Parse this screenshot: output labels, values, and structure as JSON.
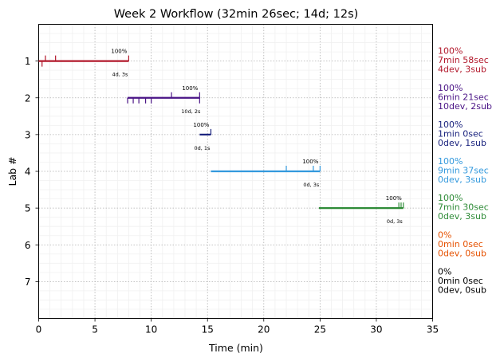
{
  "chart_data": {
    "type": "line",
    "title": "Week 2 Workflow (32min 26sec; 14d; 12s)",
    "xlabel": "Time (min)",
    "ylabel": "Lab #",
    "xlim": [
      0,
      35
    ],
    "ylim": [
      8,
      0
    ],
    "xticks": [
      "0",
      "5",
      "10",
      "15",
      "20",
      "25",
      "30",
      "35"
    ],
    "yticks": [
      "1",
      "2",
      "3",
      "4",
      "5",
      "6",
      "7"
    ],
    "grid": true,
    "series": [
      {
        "lab": 1,
        "color": "#b2182b",
        "start": 0.0,
        "end": 8.0,
        "dev_ticks": [
          0.3
        ],
        "sub_ticks": [
          0.6,
          1.5,
          8.0
        ],
        "pct": "100%",
        "counts": "4d, 3s",
        "side": [
          "100%",
          "7min 58sec",
          "4dev, 3sub"
        ]
      },
      {
        "lab": 2,
        "color": "#4a1486",
        "start": 7.9,
        "end": 14.3,
        "dev_ticks": [
          7.9,
          8.4,
          8.9,
          9.5,
          10.0,
          14.3
        ],
        "sub_ticks": [
          11.8,
          14.3
        ],
        "pct": "100%",
        "counts": "10d, 2s",
        "side": [
          "100%",
          "6min 21sec",
          "10dev, 2sub"
        ]
      },
      {
        "lab": 3,
        "color": "#1a237e",
        "start": 14.3,
        "end": 15.3,
        "dev_ticks": [],
        "sub_ticks": [
          15.3
        ],
        "pct": "100%",
        "counts": "0d, 1s",
        "side": [
          "100%",
          "1min 0sec",
          "0dev, 1sub"
        ]
      },
      {
        "lab": 4,
        "color": "#3399dd",
        "start": 15.3,
        "end": 25.0,
        "dev_ticks": [],
        "sub_ticks": [
          22.0,
          24.4,
          25.0
        ],
        "pct": "100%",
        "counts": "0d, 3s",
        "side": [
          "100%",
          "9min 37sec",
          "0dev, 3sub"
        ]
      },
      {
        "lab": 5,
        "color": "#2e8b37",
        "start": 24.9,
        "end": 32.4,
        "dev_ticks": [],
        "sub_ticks": [
          32.0,
          32.2,
          32.4
        ],
        "pct": "100%",
        "counts": "0d, 3s",
        "side": [
          "100%",
          "7min 30sec",
          "0dev, 3sub"
        ]
      },
      {
        "lab": 6,
        "color": "#e65100",
        "start": null,
        "end": null,
        "dev_ticks": [],
        "sub_ticks": [],
        "pct": "",
        "counts": "",
        "side": [
          "0%",
          "0min 0sec",
          "0dev, 0sub"
        ]
      },
      {
        "lab": 7,
        "color": "#000000",
        "start": null,
        "end": null,
        "dev_ticks": [],
        "sub_ticks": [],
        "pct": "",
        "counts": "",
        "side": [
          "0%",
          "0min 0sec",
          "0dev, 0sub"
        ]
      }
    ]
  }
}
